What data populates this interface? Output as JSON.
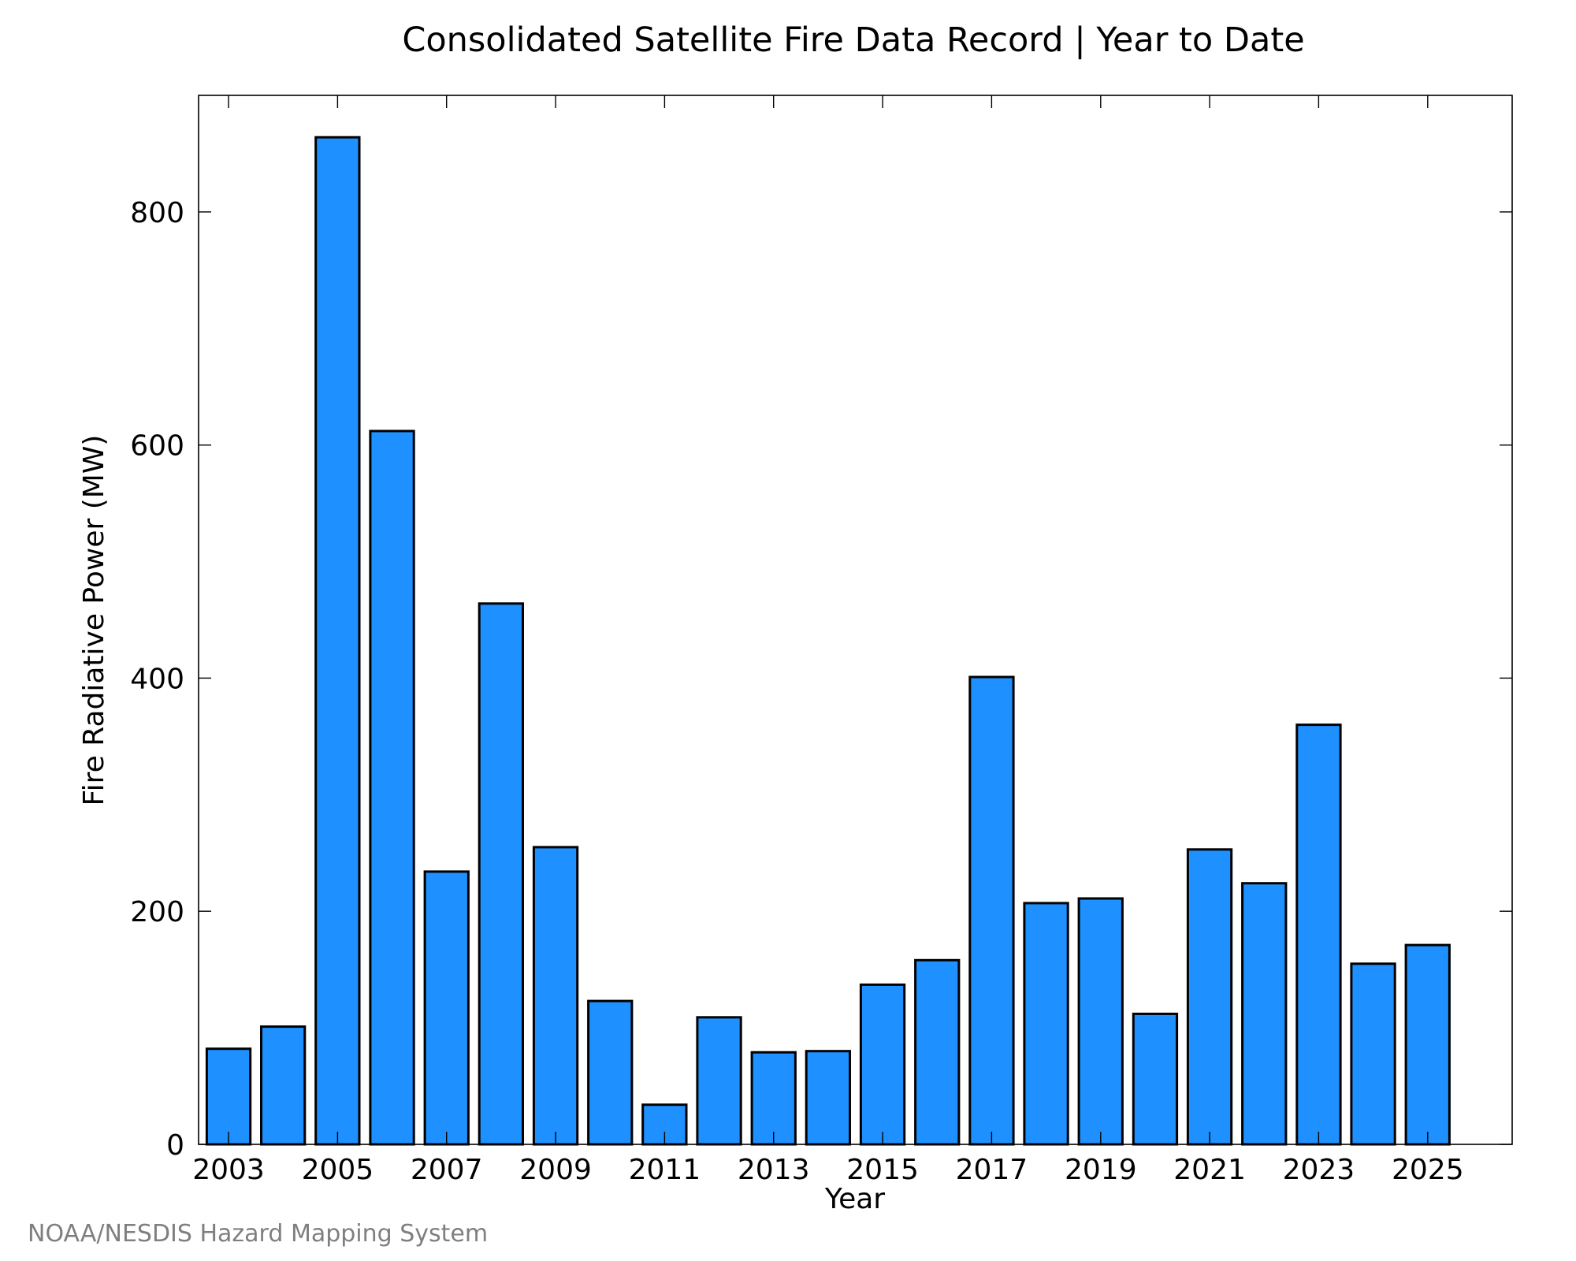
{
  "chart_data": {
    "type": "bar",
    "title": "Consolidated Satellite Fire Data Record | Year to Date",
    "xlabel": "Year",
    "ylabel": "Fire Radiative Power (MW)",
    "credit": "NOAA/NESDIS Hazard Mapping System",
    "categories": [
      2003,
      2004,
      2005,
      2006,
      2007,
      2008,
      2009,
      2010,
      2011,
      2012,
      2013,
      2014,
      2015,
      2016,
      2017,
      2018,
      2019,
      2020,
      2021,
      2022,
      2023,
      2024,
      2025
    ],
    "values": [
      82,
      101,
      864,
      612,
      234,
      464,
      255,
      123,
      34,
      109,
      79,
      80,
      137,
      158,
      401,
      207,
      211,
      112,
      253,
      224,
      360,
      155,
      171
    ],
    "ylim": [
      0,
      900
    ],
    "yticks": [
      0,
      200,
      400,
      600,
      800
    ],
    "xticks": [
      2003,
      2005,
      2007,
      2009,
      2011,
      2013,
      2015,
      2017,
      2019,
      2021,
      2023,
      2025
    ],
    "xlim": [
      2002.45,
      2026.55
    ],
    "grid": false,
    "bar_color": "#1e90ff",
    "bar_edge_color": "#000000",
    "credit_color": "#7f7f7f"
  }
}
